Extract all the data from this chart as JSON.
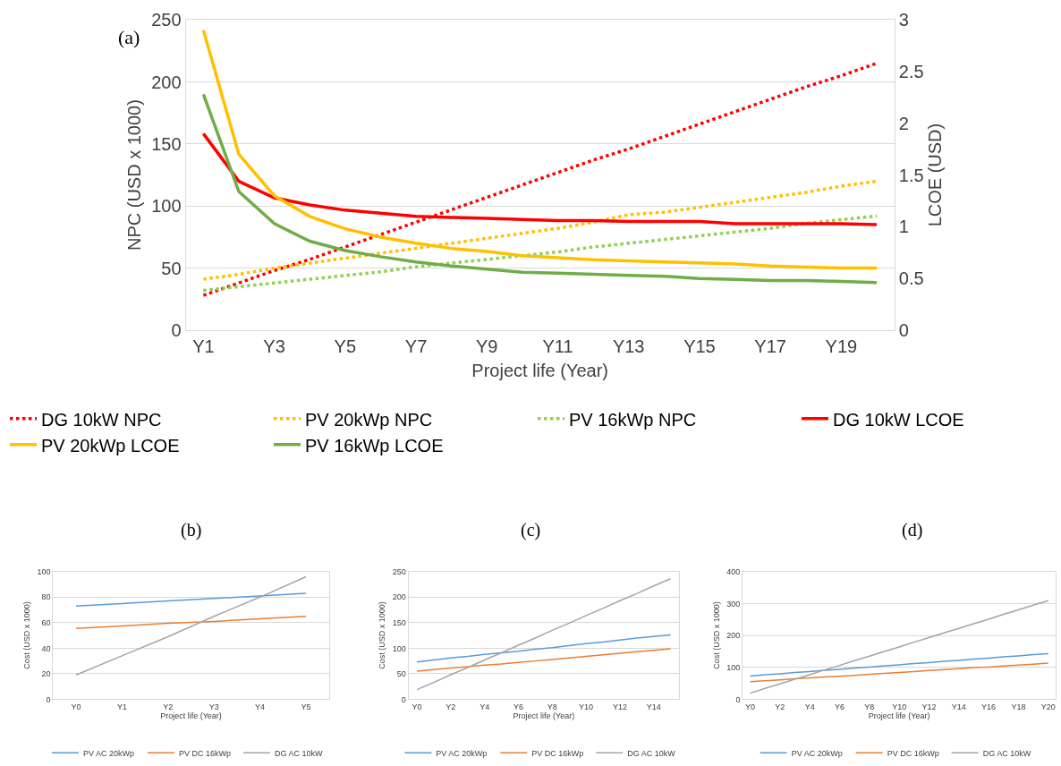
{
  "chart_data": [
    {
      "type": "line",
      "title": "(a)",
      "xlabel": "Project life (Year)",
      "ylabel": "NPC (USD x 1000)",
      "y2label": "LCOE (USD)",
      "categories": [
        "Y1",
        null,
        "Y3",
        null,
        "Y5",
        null,
        "Y7",
        null,
        "Y9",
        null,
        "Y11",
        null,
        "Y13",
        null,
        "Y15",
        null,
        "Y17",
        null,
        "Y19",
        null
      ],
      "ylim": [
        0,
        250
      ],
      "yticks": [
        0,
        50,
        100,
        150,
        200,
        250
      ],
      "y2lim": [
        0,
        3
      ],
      "y2ticks": [
        0,
        0.5,
        1,
        1.5,
        2,
        2.5,
        3
      ],
      "grid": "y",
      "legend": "bottom",
      "series": [
        {
          "name": "DG 10kW NPC",
          "color": "#ff0000",
          "line_style": "dotted",
          "values": [
            28,
            38,
            48,
            57,
            67,
            77,
            87,
            97,
            107,
            117,
            127,
            137,
            146,
            156,
            166,
            176,
            186,
            196,
            205,
            215
          ]
        },
        {
          "name": "PV 20kWp NPC",
          "color": "#ffc000",
          "line_style": "dotted",
          "values": [
            41,
            45,
            50,
            54,
            58,
            62,
            66,
            70,
            74,
            78,
            82,
            87,
            93,
            95,
            99,
            103,
            107,
            111,
            116,
            120
          ]
        },
        {
          "name": "PV 16kWp NPC",
          "color": "#92d050",
          "line_style": "dotted",
          "values": [
            32,
            35,
            38,
            41,
            44,
            47,
            51,
            54,
            57,
            60,
            63,
            67,
            70,
            73,
            76,
            79,
            82,
            86,
            89,
            92
          ]
        },
        {
          "name": "DG 10kW LCOE",
          "color": "#ff0000",
          "line_style": "solid",
          "axis": "y2",
          "values": [
            1.9,
            1.44,
            1.28,
            1.21,
            1.16,
            1.13,
            1.1,
            1.09,
            1.08,
            1.07,
            1.06,
            1.06,
            1.05,
            1.05,
            1.05,
            1.03,
            1.03,
            1.03,
            1.03,
            1.02
          ]
        },
        {
          "name": "PV 20kWp LCOE",
          "color": "#ffc000",
          "line_style": "solid",
          "axis": "y2",
          "values": [
            2.9,
            1.7,
            1.3,
            1.1,
            0.98,
            0.9,
            0.84,
            0.79,
            0.76,
            0.72,
            0.7,
            0.68,
            0.67,
            0.66,
            0.65,
            0.64,
            0.62,
            0.61,
            0.6,
            0.6
          ]
        },
        {
          "name": "PV 16kWp LCOE",
          "color": "#70ad47",
          "line_style": "solid",
          "axis": "y2",
          "values": [
            2.28,
            1.34,
            1.03,
            0.86,
            0.77,
            0.71,
            0.66,
            0.62,
            0.59,
            0.56,
            0.55,
            0.54,
            0.53,
            0.52,
            0.5,
            0.49,
            0.48,
            0.48,
            0.47,
            0.46
          ]
        }
      ]
    },
    {
      "type": "line",
      "title": "(b)",
      "xlabel": "Project life (Year)",
      "ylabel": "Cost (USD x 1000)",
      "categories": [
        "Y0",
        "Y1",
        "Y2",
        "Y3",
        "Y4",
        "Y5"
      ],
      "ylim": [
        0,
        100
      ],
      "yticks": [
        0,
        20,
        40,
        60,
        80,
        100
      ],
      "grid": "y",
      "legend": "bottom",
      "series": [
        {
          "name": "PV AC 20kWp",
          "color": "#5b9bd5",
          "values": [
            73,
            75,
            77,
            79,
            81,
            83
          ]
        },
        {
          "name": "PV DC 16kWp",
          "color": "#ed7d31",
          "values": [
            55.5,
            57.5,
            59.5,
            61,
            63,
            65
          ]
        },
        {
          "name": "DG AC 10kW",
          "color": "#a5a5a5",
          "values": [
            19,
            34,
            49,
            65,
            80,
            96
          ]
        }
      ]
    },
    {
      "type": "line",
      "title": "(c)",
      "xlabel": "Project life (Year)",
      "ylabel": "Cost (USD x 1000)",
      "categories": [
        "Y0",
        null,
        "Y2",
        null,
        "Y4",
        null,
        "Y6",
        null,
        "Y8",
        null,
        "Y10",
        null,
        "Y12",
        null,
        "Y14",
        null
      ],
      "ylim": [
        0,
        250
      ],
      "yticks": [
        0,
        50,
        100,
        150,
        200,
        250
      ],
      "grid": "y",
      "legend": "bottom",
      "series": [
        {
          "name": "PV AC 20kWp",
          "color": "#5b9bd5",
          "values": [
            73,
            77,
            81,
            84,
            88,
            91,
            94,
            98,
            101,
            105,
            109,
            112,
            116,
            120,
            123,
            126
          ]
        },
        {
          "name": "PV DC 16kWp",
          "color": "#ed7d31",
          "values": [
            55,
            58,
            61,
            64,
            67,
            69,
            72,
            75,
            78,
            81,
            84,
            87,
            90,
            93,
            96,
            99
          ]
        },
        {
          "name": "DG AC 10kW",
          "color": "#a5a5a5",
          "values": [
            19,
            33,
            48,
            62,
            77,
            91,
            106,
            120,
            135,
            149,
            164,
            178,
            193,
            207,
            222,
            236
          ]
        }
      ]
    },
    {
      "type": "line",
      "title": "(d)",
      "xlabel": "Project life (Year)",
      "ylabel": "Cost (USD x 1000)",
      "categories": [
        "Y0",
        null,
        "Y2",
        null,
        "Y4",
        null,
        "Y6",
        null,
        "Y8",
        null,
        "Y10",
        null,
        "Y12",
        null,
        "Y14",
        null,
        "Y16",
        null,
        "Y18",
        null,
        "Y20"
      ],
      "ylim": [
        0,
        400
      ],
      "yticks": [
        0,
        100,
        200,
        300,
        400
      ],
      "grid": "y",
      "legend": "bottom",
      "series": [
        {
          "name": "PV AC 20kWp",
          "color": "#5b9bd5",
          "values": [
            73,
            77,
            80,
            84,
            87,
            91,
            94,
            98,
            101,
            105,
            108,
            112,
            115,
            119,
            122,
            126,
            129,
            133,
            136,
            140,
            143
          ]
        },
        {
          "name": "PV DC 16kWp",
          "color": "#ed7d31",
          "values": [
            55,
            58,
            61,
            64,
            67,
            70,
            72,
            75,
            78,
            81,
            84,
            87,
            90,
            93,
            96,
            99,
            101,
            104,
            107,
            110,
            113
          ]
        },
        {
          "name": "DG AC 10kW",
          "color": "#a5a5a5",
          "values": [
            19,
            34,
            48,
            63,
            77,
            92,
            106,
            121,
            135,
            150,
            164,
            179,
            193,
            208,
            222,
            237,
            251,
            266,
            280,
            295,
            309
          ]
        }
      ]
    }
  ]
}
